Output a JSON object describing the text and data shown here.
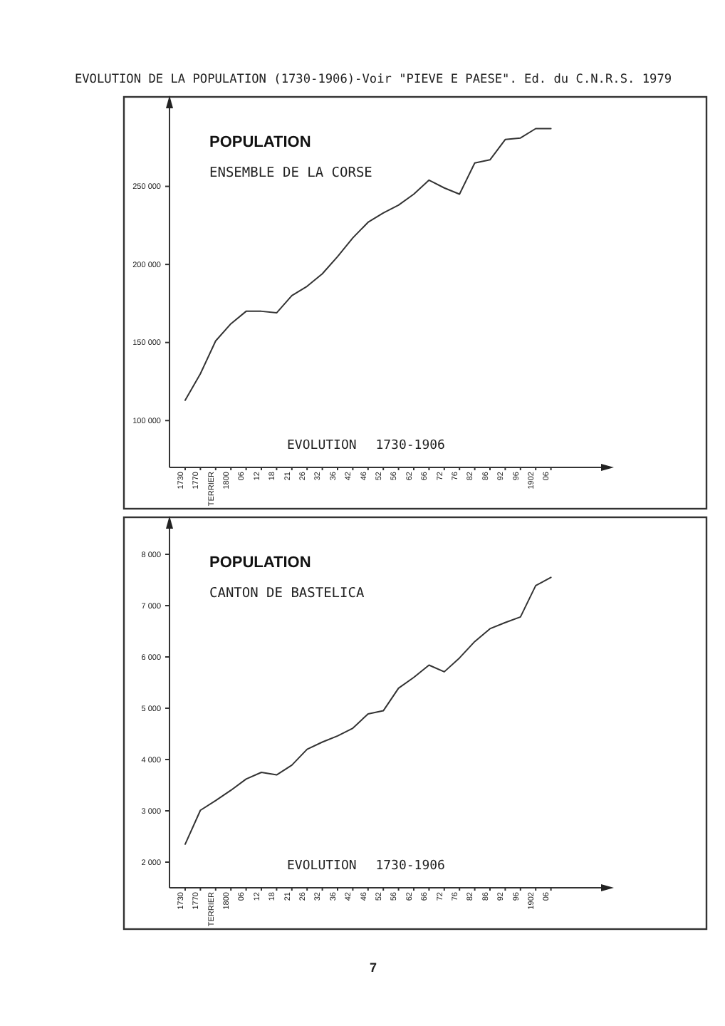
{
  "chart_data": [
    {
      "type": "line",
      "title": "POPULATION",
      "subtitle": "ENSEMBLE DE LA CORSE",
      "annotations": [
        "EVOLUTION 1730-1906",
        "EVOLUTION DE LA POPULATION (1730-1906)-Voir \"PIEVE E PAESE\". Ed. du C.N.R.S. 1979"
      ],
      "categories": [
        "1730",
        "1770",
        "TERRIER",
        "1800",
        "06",
        "12",
        "18",
        "21",
        "26",
        "32",
        "36",
        "42",
        "46",
        "52",
        "56",
        "62",
        "66",
        "72",
        "76",
        "82",
        "86",
        "92",
        "96",
        "1902",
        "06"
      ],
      "values": [
        113000,
        130000,
        151000,
        162000,
        170000,
        170000,
        169000,
        180000,
        186000,
        194000,
        205000,
        217000,
        227000,
        233000,
        238000,
        245000,
        254000,
        249000,
        245000,
        265000,
        267000,
        280000,
        281000,
        287000,
        287000
      ],
      "color": "#333333",
      "ylim": [
        70000,
        300000
      ],
      "yticks": [
        {
          "value": 100000,
          "label": "100 000"
        },
        {
          "value": 150000,
          "label": "150 000"
        },
        {
          "value": 200000,
          "label": "200 000"
        },
        {
          "value": 250000,
          "label": "250 000"
        }
      ]
    },
    {
      "type": "line",
      "title": "POPULATION",
      "subtitle": "CANTON DE BASTELICA",
      "annotations": [
        "EVOLUTION 1730-1906",
        "7"
      ],
      "categories": [
        "1730",
        "1770",
        "TERRIER",
        "1800",
        "06",
        "12",
        "18",
        "21",
        "26",
        "32",
        "36",
        "42",
        "46",
        "52",
        "56",
        "62",
        "66",
        "72",
        "76",
        "82",
        "86",
        "92",
        "96",
        "1902",
        "06"
      ],
      "values": [
        2350,
        3010,
        3200,
        3400,
        3620,
        3750,
        3700,
        3890,
        4200,
        4340,
        4460,
        4610,
        4890,
        4950,
        5390,
        5600,
        5840,
        5710,
        5980,
        6300,
        6550,
        6670,
        6780,
        7390,
        7550
      ],
      "color": "#333333",
      "ylim": [
        1500,
        8500
      ],
      "yticks": [
        {
          "value": 2000,
          "label": "2 000"
        },
        {
          "value": 3000,
          "label": "3 000"
        },
        {
          "value": 4000,
          "label": "4 000"
        },
        {
          "value": 5000,
          "label": "5 000"
        },
        {
          "value": 6000,
          "label": "6 000"
        },
        {
          "value": 7000,
          "label": "7 000"
        },
        {
          "value": 8000,
          "label": "8 000"
        }
      ]
    }
  ]
}
